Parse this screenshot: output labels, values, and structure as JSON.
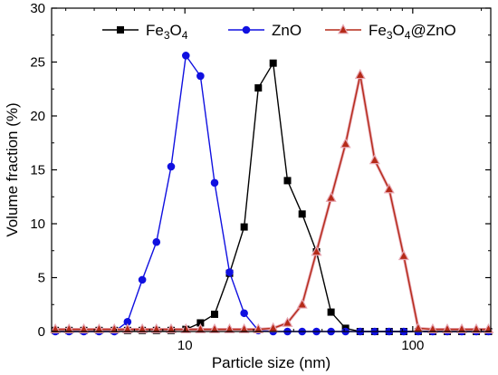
{
  "chart_data": {
    "type": "line",
    "xlabel": "Particle size (nm)",
    "ylabel": "Volume fraction (%)",
    "xscale": "log",
    "xlim": [
      2.6,
      220
    ],
    "ylim": [
      0,
      30
    ],
    "xticks": [
      10,
      100
    ],
    "yticks": [
      0,
      5,
      10,
      15,
      20,
      25,
      30
    ],
    "grid": false,
    "legend_placement": "top",
    "series": [
      {
        "name": "Fe3O4",
        "legend_parts": [
          "Fe",
          "3",
          "O",
          "4"
        ],
        "color": "#000000",
        "marker": "square",
        "x": [
          2.7,
          3.1,
          3.6,
          4.2,
          4.9,
          5.6,
          6.5,
          7.5,
          8.7,
          10.1,
          11.7,
          13.5,
          15.7,
          18.2,
          21.0,
          24.4,
          28.2,
          32.7,
          37.8,
          43.8,
          50.7,
          58.8,
          68.1,
          78.8,
          91.3,
          105.7,
          122.4,
          141.8,
          164.2,
          190.1,
          215
        ],
        "y": [
          0.1,
          0.1,
          0.1,
          0.1,
          0.1,
          0.1,
          0.1,
          0.1,
          0.1,
          0.2,
          0.8,
          1.6,
          5.4,
          9.7,
          22.6,
          24.9,
          14.0,
          10.9,
          7.4,
          1.8,
          0.3,
          0,
          0,
          0,
          0,
          0,
          0,
          0,
          0,
          0,
          0
        ]
      },
      {
        "name": "ZnO",
        "legend_parts": [
          "ZnO"
        ],
        "color": "#1010e0",
        "marker": "circle",
        "x": [
          2.7,
          3.1,
          3.6,
          4.2,
          4.9,
          5.6,
          6.5,
          7.5,
          8.7,
          10.1,
          11.7,
          13.5,
          15.7,
          18.2,
          21.0,
          24.4,
          28.2,
          32.7,
          37.8,
          43.8,
          50.7,
          58.8,
          68.1,
          78.8,
          91.3,
          105.7,
          122.4,
          141.8,
          164.2,
          190.1,
          215
        ],
        "y": [
          0,
          0,
          0,
          0,
          0,
          0.9,
          4.8,
          8.3,
          15.3,
          25.6,
          23.7,
          13.8,
          5.5,
          1.7,
          0.1,
          0,
          0,
          0,
          0,
          0,
          0,
          0,
          0,
          0,
          0,
          0,
          0,
          0,
          0,
          0,
          0
        ]
      },
      {
        "name": "Fe3O4@ZnO",
        "legend_parts": [
          "Fe",
          "3",
          "O",
          "4",
          "@ZnO"
        ],
        "color": "#b52a18",
        "marker": "triangle",
        "x": [
          2.7,
          3.1,
          3.6,
          4.2,
          4.9,
          5.6,
          6.5,
          7.5,
          8.7,
          10.1,
          11.7,
          13.5,
          15.7,
          18.2,
          21.0,
          24.4,
          28.2,
          32.7,
          37.8,
          43.8,
          50.7,
          58.8,
          68.1,
          78.8,
          91.3,
          105.7,
          122.4,
          141.8,
          164.2,
          190.1,
          215
        ],
        "y": [
          0.2,
          0.2,
          0.2,
          0.2,
          0.2,
          0.2,
          0.2,
          0.2,
          0.2,
          0.2,
          0.2,
          0.2,
          0.2,
          0.2,
          0.2,
          0.3,
          0.8,
          2.5,
          7.4,
          12.4,
          17.4,
          23.8,
          15.9,
          13.2,
          7.0,
          0.3,
          0.2,
          0.2,
          0.2,
          0.2,
          0.2
        ]
      }
    ]
  }
}
